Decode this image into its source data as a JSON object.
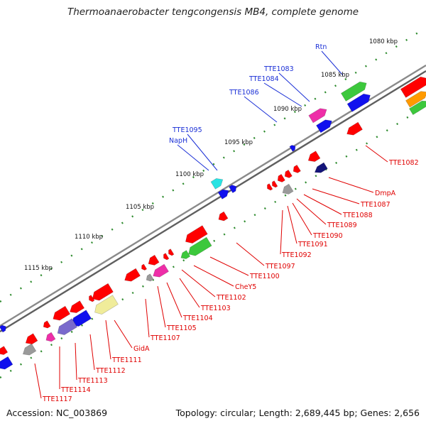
{
  "title": "Thermoanaerobacter tengcongensis MB4, complete genome",
  "footer": {
    "accession": "Accession: NC_003869",
    "summary": "Topology: circular; Length: 2,689,445 bp; Genes: 2,656"
  },
  "colors": {
    "backbone": "#8a8a8a",
    "tick": "#2e8b2e",
    "forward_label": "#1a2fd6",
    "reverse_label": "#e00000",
    "gene_red": "#ff0000",
    "gene_blue": "#1010ee",
    "gene_green": "#3cc83c",
    "gene_magenta": "#ee2ea8",
    "gene_cyan": "#29e3e3",
    "gene_navy": "#14147a",
    "gene_gray": "#9a9a9a",
    "gene_yellow": "#f0ec9a",
    "gene_purple": "#7a6acc",
    "gene_orange": "#ff9a00"
  },
  "kbp_labels": [
    "1080 kbp",
    "1085 kbp",
    "1090 kbp",
    "1095 kbp",
    "1100 kbp",
    "1105 kbp",
    "1110 kbp",
    "1115 kbp"
  ],
  "forward_labels": [
    "Rtn",
    "TTE1083",
    "TTE1084",
    "TTE1086",
    "TTE1095",
    "NapH"
  ],
  "reverse_labels": [
    "TTE1082",
    "DmpA",
    "TTE1087",
    "TTE1088",
    "TTE1089",
    "TTE1090",
    "TTE1091",
    "TTE1092",
    "TTE1097",
    "TTE1100",
    "CheY5",
    "TTE1102",
    "TTE1103",
    "TTE1104",
    "TTE1105",
    "TTE1107",
    "GidA",
    "TTE1111",
    "TTE1112",
    "TTE1113",
    "TTE1114",
    "TTE1117"
  ]
}
